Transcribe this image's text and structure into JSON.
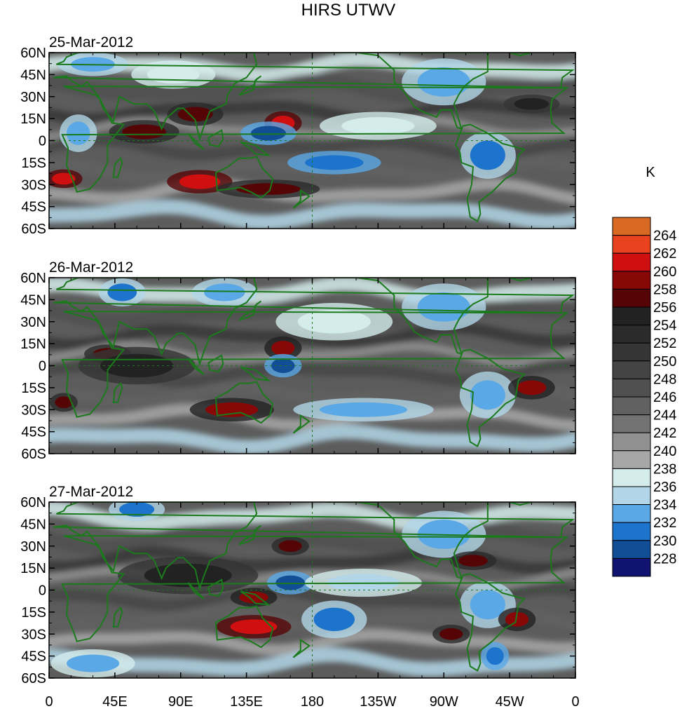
{
  "chart_data": {
    "type": "heatmap",
    "title": "HIRS UTWV",
    "colorbar_unit": "K",
    "colorbar_labels": [
      "264",
      "262",
      "260",
      "258",
      "256",
      "254",
      "252",
      "250",
      "248",
      "246",
      "244",
      "242",
      "240",
      "238",
      "236",
      "234",
      "232",
      "230",
      "228"
    ],
    "colorbar_colors": [
      "#d86a24",
      "#e8431e",
      "#d01010",
      "#880808",
      "#560506",
      "#222222",
      "#2b2b2b",
      "#353535",
      "#444444",
      "#505050",
      "#616161",
      "#727272",
      "#909090",
      "#a7a7a7",
      "#d5ecec",
      "#b2d6e7",
      "#5aa8e6",
      "#1c74cc",
      "#114e96",
      "#101470"
    ],
    "lat_labels": [
      "60N",
      "45N",
      "30N",
      "15N",
      "0",
      "15S",
      "30S",
      "45S",
      "60S"
    ],
    "lon_labels": [
      "0",
      "45E",
      "90E",
      "135E",
      "180",
      "135W",
      "90W",
      "45W",
      "0"
    ],
    "panels": [
      {
        "date": "25-Mar-2012",
        "features": [
          {
            "lon": 65,
            "lat": 6,
            "v": 258,
            "rx": 15,
            "ry": 5
          },
          {
            "lon": 100,
            "lat": 18,
            "v": 257,
            "rx": 12,
            "ry": 5
          },
          {
            "lon": 103,
            "lat": -28,
            "v": 262,
            "rx": 14,
            "ry": 5
          },
          {
            "lon": 10,
            "lat": -26,
            "v": 261,
            "rx": 8,
            "ry": 4
          },
          {
            "lon": 160,
            "lat": 12,
            "v": 261,
            "rx": 8,
            "ry": 5
          },
          {
            "lon": 150,
            "lat": -33,
            "v": 258,
            "rx": 22,
            "ry": 4
          },
          {
            "lon": 150,
            "lat": 5,
            "v": 230,
            "rx": 12,
            "ry": 5
          },
          {
            "lon": 195,
            "lat": -15,
            "v": 231,
            "rx": 20,
            "ry": 5
          },
          {
            "lon": 270,
            "lat": 40,
            "v": 233,
            "rx": 18,
            "ry": 10
          },
          {
            "lon": 300,
            "lat": -10,
            "v": 232,
            "rx": 12,
            "ry": 10
          },
          {
            "lon": 30,
            "lat": 52,
            "v": 233,
            "rx": 15,
            "ry": 5
          },
          {
            "lon": 20,
            "lat": 5,
            "v": 233,
            "rx": 8,
            "ry": 8
          },
          {
            "lon": 225,
            "lat": 10,
            "v": 237,
            "rx": 25,
            "ry": 6
          },
          {
            "lon": 330,
            "lat": 25,
            "v": 256,
            "rx": 12,
            "ry": 4
          },
          {
            "lon": 85,
            "lat": 45,
            "v": 237,
            "rx": 18,
            "ry": 6
          }
        ]
      },
      {
        "date": "26-Mar-2012",
        "features": [
          {
            "lon": 40,
            "lat": 8,
            "v": 257,
            "rx": 10,
            "ry": 4
          },
          {
            "lon": 125,
            "lat": -30,
            "v": 260,
            "rx": 18,
            "ry": 5
          },
          {
            "lon": 160,
            "lat": 12,
            "v": 259,
            "rx": 8,
            "ry": 5
          },
          {
            "lon": 50,
            "lat": 50,
            "v": 232,
            "rx": 10,
            "ry": 6
          },
          {
            "lon": 120,
            "lat": 50,
            "v": 233,
            "rx": 14,
            "ry": 6
          },
          {
            "lon": 270,
            "lat": 40,
            "v": 233,
            "rx": 18,
            "ry": 10
          },
          {
            "lon": 160,
            "lat": 0,
            "v": 230,
            "rx": 8,
            "ry": 5
          },
          {
            "lon": 215,
            "lat": -30,
            "v": 233,
            "rx": 30,
            "ry": 5
          },
          {
            "lon": 300,
            "lat": -20,
            "v": 233,
            "rx": 12,
            "ry": 10
          },
          {
            "lon": 330,
            "lat": -15,
            "v": 259,
            "rx": 10,
            "ry": 5
          },
          {
            "lon": 10,
            "lat": -25,
            "v": 258,
            "rx": 6,
            "ry": 4
          },
          {
            "lon": 195,
            "lat": 30,
            "v": 237,
            "rx": 25,
            "ry": 8
          },
          {
            "lon": 60,
            "lat": 0,
            "v": 255,
            "rx": 25,
            "ry": 8
          }
        ]
      },
      {
        "date": "27-Mar-2012",
        "features": [
          {
            "lon": 140,
            "lat": -25,
            "v": 262,
            "rx": 16,
            "ry": 5
          },
          {
            "lon": 140,
            "lat": -5,
            "v": 259,
            "rx": 10,
            "ry": 4
          },
          {
            "lon": 165,
            "lat": 30,
            "v": 257,
            "rx": 8,
            "ry": 4
          },
          {
            "lon": 165,
            "lat": 5,
            "v": 230,
            "rx": 10,
            "ry": 5
          },
          {
            "lon": 195,
            "lat": -20,
            "v": 232,
            "rx": 14,
            "ry": 8
          },
          {
            "lon": 270,
            "lat": 38,
            "v": 233,
            "rx": 18,
            "ry": 10
          },
          {
            "lon": 300,
            "lat": -10,
            "v": 233,
            "rx": 12,
            "ry": 10
          },
          {
            "lon": 320,
            "lat": -20,
            "v": 259,
            "rx": 8,
            "ry": 5
          },
          {
            "lon": 290,
            "lat": 20,
            "v": 257,
            "rx": 10,
            "ry": 4
          },
          {
            "lon": 60,
            "lat": 55,
            "v": 232,
            "rx": 12,
            "ry": 5
          },
          {
            "lon": 30,
            "lat": -50,
            "v": 234,
            "rx": 18,
            "ry": 6
          },
          {
            "lon": 275,
            "lat": -30,
            "v": 257,
            "rx": 8,
            "ry": 4
          },
          {
            "lon": 305,
            "lat": -45,
            "v": 231,
            "rx": 6,
            "ry": 6
          },
          {
            "lon": 95,
            "lat": 10,
            "v": 255,
            "rx": 30,
            "ry": 8
          },
          {
            "lon": 215,
            "lat": 5,
            "v": 236,
            "rx": 25,
            "ry": 6
          }
        ]
      }
    ]
  }
}
